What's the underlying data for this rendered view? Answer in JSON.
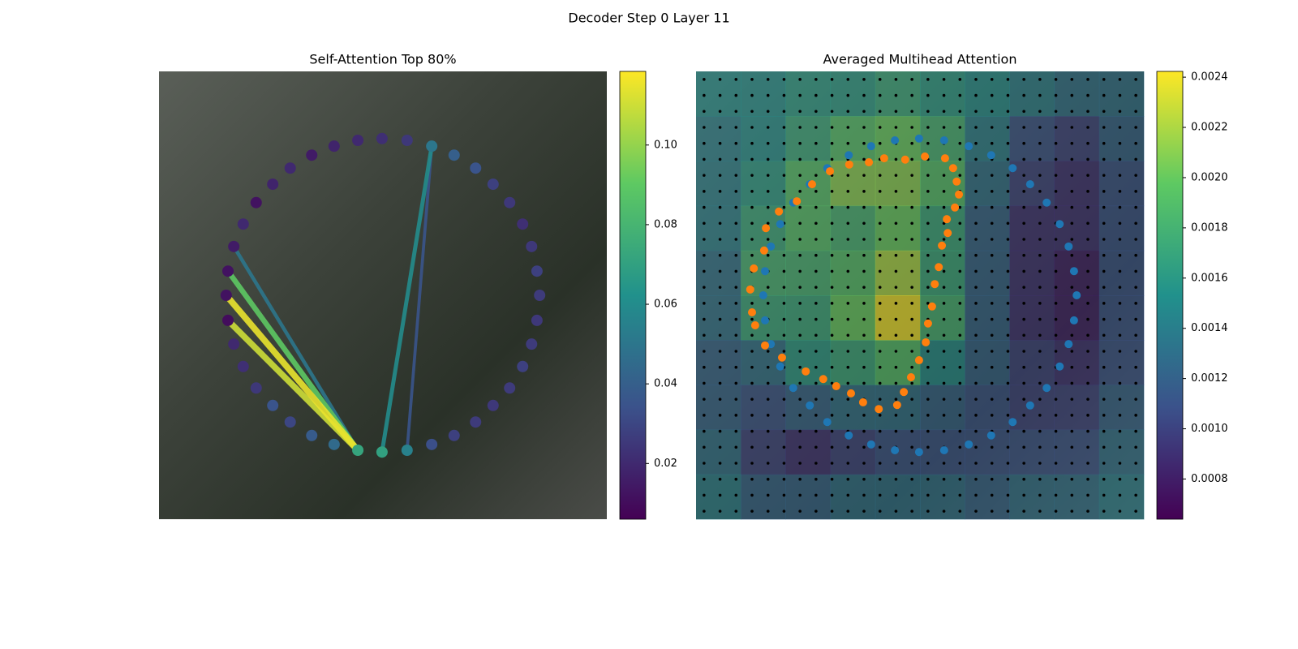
{
  "title": "Decoder Step 0 Layer 11",
  "chart_data": [
    {
      "type": "scatter",
      "title": "Self-Attention Top 80%",
      "colormap": "viridis",
      "xlim": [
        0,
        100
      ],
      "ylim": [
        100,
        0
      ],
      "x": [
        34.1,
        39.1,
        44.4,
        49.8,
        55.4,
        60.9,
        65.9,
        70.7,
        74.6,
        78.3,
        81.2,
        83.2,
        84.4,
        85.0,
        84.4,
        83.2,
        81.2,
        78.3,
        74.6,
        70.7,
        65.9,
        60.9,
        55.4,
        49.8,
        44.4,
        39.1,
        34.1,
        29.3,
        25.4,
        21.7,
        18.8,
        16.7,
        15.4,
        15.0,
        15.4,
        16.7,
        18.8,
        21.7,
        25.4,
        29.3
      ],
      "y": [
        18.7,
        16.7,
        15.4,
        15.0,
        15.4,
        16.7,
        18.7,
        21.6,
        25.2,
        29.3,
        34.1,
        39.1,
        44.6,
        50.0,
        55.6,
        60.9,
        65.9,
        70.7,
        74.6,
        78.3,
        81.3,
        83.3,
        84.6,
        85.0,
        84.6,
        83.3,
        81.3,
        78.3,
        74.6,
        70.7,
        65.9,
        60.9,
        55.6,
        50.0,
        44.6,
        39.1,
        34.1,
        29.3,
        25.2,
        21.6
      ],
      "values": [
        0.015,
        0.018,
        0.02,
        0.022,
        0.025,
        0.05,
        0.04,
        0.035,
        0.028,
        0.025,
        0.022,
        0.025,
        0.028,
        0.026,
        0.025,
        0.026,
        0.028,
        0.026,
        0.025,
        0.026,
        0.028,
        0.033,
        0.055,
        0.07,
        0.072,
        0.045,
        0.038,
        0.03,
        0.035,
        0.025,
        0.022,
        0.02,
        0.01,
        0.012,
        0.012,
        0.015,
        0.02,
        0.012,
        0.018,
        0.02
      ],
      "edges": {
        "from": [
          22,
          24,
          24,
          24,
          24,
          23
        ],
        "to": [
          5,
          35,
          34,
          32,
          33,
          5
        ],
        "values": [
          0.035,
          0.05,
          0.09,
          0.11,
          0.115,
          0.06
        ]
      },
      "colorbar": {
        "lim": [
          0.006,
          0.1185
        ],
        "ticks": [
          0.02,
          0.04,
          0.06,
          0.08,
          {
            "value": 0.1,
            "label": "0.10"
          }
        ]
      }
    },
    {
      "type": "heatmap",
      "title": "Averaged Multihead Attention",
      "colormap": "viridis",
      "xlim": [
        0,
        100
      ],
      "ylim": [
        100,
        0
      ],
      "z": [
        [
          0.0015,
          0.0015,
          0.0016,
          0.0016,
          0.0017,
          0.0016,
          0.0015,
          0.0014,
          0.0013,
          0.0013
        ],
        [
          0.0014,
          0.0015,
          0.0017,
          0.0019,
          0.002,
          0.0018,
          0.0014,
          0.0011,
          0.001,
          0.0012
        ],
        [
          0.0014,
          0.0016,
          0.0019,
          0.0021,
          0.0021,
          0.0019,
          0.0013,
          0.001,
          0.0009,
          0.0011
        ],
        [
          0.0014,
          0.0017,
          0.0019,
          0.0018,
          0.002,
          0.0017,
          0.0012,
          0.0009,
          0.0009,
          0.0011
        ],
        [
          0.0013,
          0.0018,
          0.0018,
          0.0019,
          0.0022,
          0.0017,
          0.0012,
          0.0009,
          0.0008,
          0.0011
        ],
        [
          0.0013,
          0.0017,
          0.0017,
          0.002,
          0.0024,
          0.0018,
          0.0012,
          0.0009,
          0.0008,
          0.0011
        ],
        [
          0.0012,
          0.0013,
          0.0016,
          0.0017,
          0.0019,
          0.0015,
          0.0012,
          0.001,
          0.0009,
          0.0011
        ],
        [
          0.0012,
          0.0011,
          0.0012,
          0.0013,
          0.0013,
          0.0012,
          0.0011,
          0.001,
          0.001,
          0.0012
        ],
        [
          0.0013,
          0.001,
          0.0009,
          0.001,
          0.0011,
          0.0011,
          0.0011,
          0.0011,
          0.0011,
          0.0013
        ],
        [
          0.0014,
          0.0012,
          0.0012,
          0.0013,
          0.0013,
          0.0013,
          0.0012,
          0.0013,
          0.0013,
          0.0014
        ]
      ],
      "series": [
        {
          "color": "#1f77b4",
          "x": [
            34.1,
            39.1,
            44.4,
            49.8,
            55.4,
            60.9,
            65.9,
            70.7,
            74.6,
            78.3,
            81.2,
            83.2,
            84.4,
            85.0,
            84.4,
            83.2,
            81.2,
            78.3,
            74.6,
            70.7,
            65.9,
            60.9,
            55.4,
            49.8,
            44.4,
            39.1,
            34.1,
            29.3,
            25.4,
            21.7,
            18.8,
            16.7,
            15.4,
            15.0,
            15.4,
            16.7,
            18.8,
            21.7,
            25.4,
            29.3
          ],
          "y": [
            18.7,
            16.7,
            15.4,
            15.0,
            15.4,
            16.7,
            18.7,
            21.6,
            25.2,
            29.3,
            34.1,
            39.1,
            44.6,
            50.0,
            55.6,
            60.9,
            65.9,
            70.7,
            74.6,
            78.3,
            81.3,
            83.3,
            84.6,
            85.0,
            84.6,
            83.3,
            81.3,
            78.3,
            74.6,
            70.7,
            65.9,
            60.9,
            55.6,
            50.0,
            44.6,
            39.1,
            34.1,
            29.3,
            25.2,
            21.6
          ]
        },
        {
          "color": "#ff7f0e",
          "x": [
            34.2,
            38.6,
            42.0,
            46.7,
            51.1,
            55.6,
            57.4,
            58.2,
            58.7,
            57.8,
            56.0,
            56.2,
            54.9,
            54.2,
            53.3,
            52.7,
            51.8,
            51.3,
            49.8,
            48.0,
            46.4,
            44.9,
            40.8,
            37.3,
            34.6,
            31.3,
            28.4,
            24.5,
            19.2,
            15.4,
            13.2,
            12.5,
            12.1,
            12.9,
            15.2,
            15.6,
            18.5,
            22.5,
            25.9,
            29.9
          ],
          "y": [
            20.8,
            20.3,
            19.4,
            19.7,
            19.0,
            19.4,
            21.6,
            24.6,
            27.5,
            30.4,
            33.0,
            36.1,
            38.9,
            43.7,
            47.5,
            52.5,
            56.3,
            60.5,
            64.5,
            68.3,
            71.6,
            74.5,
            75.4,
            73.9,
            71.9,
            70.3,
            68.7,
            67.0,
            63.9,
            61.2,
            56.7,
            53.8,
            48.7,
            44.0,
            40.0,
            35.0,
            31.3,
            29.0,
            25.2,
            22.3
          ]
        }
      ],
      "colorbar": {
        "lim": [
          0.00064,
          0.002423
        ],
        "ticks": [
          0.0008,
          {
            "value": 0.001,
            "label": "0.0010"
          },
          0.0012,
          0.0014,
          0.0016,
          0.0018,
          {
            "value": 0.002,
            "label": "0.0020"
          },
          0.0022,
          0.0024
        ]
      }
    }
  ]
}
